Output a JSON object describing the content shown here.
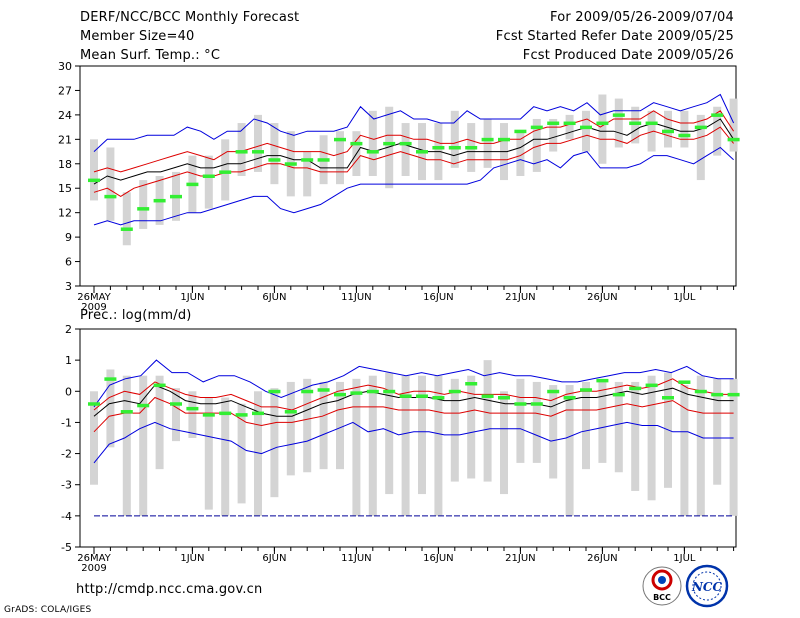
{
  "header": {
    "title": "DERF/NCC/BCC Monthly Forecast",
    "member": "Member Size=40",
    "variable": "Mean Surf. Temp.: °C",
    "period": "For 2009/05/26-2009/07/04",
    "refer": "Fcst Started Refer Date 2009/05/25",
    "produced": "Fcst Produced Date 2009/05/26"
  },
  "precip_label": "Prec.: log(mm/d)",
  "footer": {
    "url": "http://cmdp.ncc.cma.gov.cn",
    "credit": "GrADS: COLA/IGES"
  },
  "logos": {
    "bcc": "BCC",
    "ncc": "NCC"
  },
  "colors": {
    "max_min": "#0000dd",
    "spread": "#dd0000",
    "mean": "#000000",
    "box": "#d4d4d4",
    "obs": "#33ee33",
    "floor": "#000099"
  },
  "chart_data": [
    {
      "type": "box",
      "title": "Mean Surf. Temp.: °C",
      "ylim": [
        3,
        30
      ],
      "yticks": [
        3,
        6,
        9,
        12,
        15,
        18,
        21,
        24,
        27,
        30
      ],
      "xticks": [
        {
          "day": 0,
          "label": "26MAY",
          "sub": "2009"
        },
        {
          "day": 6,
          "label": "1JUN"
        },
        {
          "day": 11,
          "label": "6JUN"
        },
        {
          "day": 16,
          "label": "11JUN"
        },
        {
          "day": 21,
          "label": "16JUN"
        },
        {
          "day": 26,
          "label": "21JUN"
        },
        {
          "day": 31,
          "label": "26JUN"
        },
        {
          "day": 36,
          "label": "1JUL"
        }
      ],
      "days": 40,
      "series": [
        {
          "name": "max",
          "values": [
            19.5,
            21,
            21,
            21,
            21.5,
            21.5,
            21.5,
            22.5,
            22,
            21,
            22,
            22,
            23.5,
            23,
            22,
            21.5,
            22,
            22,
            22,
            22.5,
            25,
            23.5,
            24,
            24.5,
            23.5,
            23.5,
            23,
            23,
            24.5,
            23.5,
            23.5,
            23.5,
            23.5,
            25,
            24.5,
            25,
            24.5,
            25.5,
            24,
            24.5,
            24.5,
            24.5,
            25.5,
            25,
            24.5,
            25,
            25.5,
            26.5,
            23
          ]
        },
        {
          "name": "upper",
          "values": [
            17,
            17.5,
            17,
            17.5,
            18,
            18.5,
            19,
            19.5,
            19,
            18.5,
            19.5,
            19.5,
            20,
            20.5,
            20,
            19.5,
            19.5,
            19.5,
            19,
            19.5,
            21.5,
            21,
            21.5,
            21.5,
            21,
            21,
            20.5,
            20.5,
            21,
            20.5,
            20.5,
            21,
            21,
            22,
            22.5,
            22.5,
            23,
            23.5,
            22.5,
            23.5,
            23.5,
            23.5,
            24.5,
            23.5,
            23,
            23,
            23.5,
            24.5,
            22
          ]
        },
        {
          "name": "mean",
          "values": [
            15.5,
            16.5,
            16,
            16.5,
            17,
            17,
            17.5,
            18,
            17.5,
            17.5,
            18,
            18,
            18.5,
            19,
            19,
            18.5,
            18.5,
            17.5,
            17.5,
            17.5,
            20,
            19.5,
            20,
            20.5,
            20,
            19.5,
            19.5,
            19,
            19.5,
            19.5,
            19.5,
            19.5,
            20,
            21,
            21,
            21.5,
            22,
            22.5,
            22,
            22,
            21.5,
            22.5,
            23,
            22.5,
            22,
            22,
            22.5,
            23.5,
            21
          ]
        },
        {
          "name": "lower",
          "values": [
            14.5,
            15,
            14,
            15,
            15.5,
            16,
            16.5,
            17,
            16.5,
            16.5,
            17,
            17,
            17.5,
            18,
            18,
            17.5,
            17.5,
            17,
            17,
            17,
            19,
            18.5,
            19,
            19.5,
            19,
            18.5,
            18.5,
            18,
            18.5,
            18.5,
            18.5,
            18.5,
            19,
            20,
            20.5,
            20.5,
            21,
            21.5,
            21,
            21,
            20.5,
            21.5,
            22,
            21.5,
            21,
            21,
            21.5,
            22.5,
            20.5
          ]
        },
        {
          "name": "min",
          "values": [
            10.5,
            11,
            10.5,
            11,
            11,
            11,
            11.5,
            12,
            12,
            12.5,
            13,
            13.5,
            14,
            14,
            12.5,
            12,
            12.5,
            13,
            14,
            15,
            15.5,
            15.5,
            15.5,
            15.5,
            15.5,
            15.5,
            15.5,
            15.5,
            15.5,
            16,
            17.5,
            18,
            18.5,
            18,
            18.5,
            17.5,
            19,
            19.5,
            17.5,
            17.5,
            17.5,
            18,
            19,
            19,
            18.5,
            18,
            19,
            20,
            18.5
          ]
        }
      ],
      "boxes": {
        "lows": [
          13.5,
          11,
          8,
          10,
          10.5,
          11,
          12,
          12.5,
          13.5,
          16.5,
          17,
          15.5,
          14,
          14,
          15.5,
          15.5,
          16.5,
          16.5,
          15,
          16.5,
          16,
          16,
          17.5,
          17,
          17.5,
          16,
          16.5,
          17,
          19.5,
          21,
          19.5,
          18,
          20,
          20.5,
          19.5,
          20,
          20,
          16,
          19,
          19.5
        ],
        "highs": [
          21,
          20,
          14.5,
          16,
          16.5,
          17,
          19,
          19,
          21,
          23,
          24,
          23,
          22,
          19.5,
          21.5,
          22,
          22,
          24.5,
          25,
          23,
          23,
          23,
          24.5,
          23,
          23.5,
          23,
          22,
          23.5,
          23.5,
          24,
          24.5,
          26.5,
          26,
          25,
          24.5,
          24.5,
          24.5,
          24,
          25,
          26
        ]
      },
      "observed": [
        16,
        14,
        10,
        12.5,
        13.5,
        14,
        15.5,
        16.5,
        17,
        19.5,
        19.5,
        18.5,
        18,
        18.5,
        18.5,
        21,
        20.5,
        19.5,
        20.5,
        20.5,
        19.5,
        20,
        20,
        20,
        21,
        21,
        22,
        22.5,
        23,
        23,
        22.5,
        23,
        24,
        23,
        23,
        22,
        21.5,
        22.5,
        24,
        21
      ]
    },
    {
      "type": "box",
      "title": "Prec.: log(mm/d)",
      "ylim": [
        -5,
        2
      ],
      "yticks": [
        -5,
        -4,
        -3,
        -2,
        -1,
        0,
        1,
        2
      ],
      "xticks": [
        {
          "day": 0,
          "label": "26MAY",
          "sub": "2009"
        },
        {
          "day": 6,
          "label": "1JUN"
        },
        {
          "day": 11,
          "label": "6JUN"
        },
        {
          "day": 16,
          "label": "11JUN"
        },
        {
          "day": 21,
          "label": "16JUN"
        },
        {
          "day": 26,
          "label": "21JUN"
        },
        {
          "day": 31,
          "label": "26JUN"
        },
        {
          "day": 36,
          "label": "1JUL"
        }
      ],
      "days": 40,
      "floor": -4,
      "series": [
        {
          "name": "max",
          "values": [
            -0.5,
            0.2,
            0.4,
            0.5,
            1,
            0.6,
            0.6,
            0.3,
            0.5,
            0.5,
            0.3,
            0,
            -0.2,
            0,
            0.2,
            0.3,
            0.5,
            0.8,
            0.7,
            0.6,
            0.5,
            0.6,
            0.5,
            0.6,
            0.7,
            0.5,
            0.6,
            0.5,
            0.5,
            0.4,
            0.3,
            0.3,
            0.4,
            0.5,
            0.6,
            0.6,
            0.7,
            0.6,
            0.8,
            0.5,
            0.4,
            0.4
          ]
        },
        {
          "name": "upper",
          "values": [
            -0.6,
            -0.2,
            0,
            -0.1,
            0.3,
            0.1,
            -0.1,
            -0.2,
            -0.2,
            -0.1,
            -0.3,
            -0.5,
            -0.5,
            -0.6,
            -0.4,
            -0.2,
            0,
            0.1,
            0.2,
            0.1,
            -0.1,
            0,
            0,
            -0.1,
            0,
            -0.1,
            -0.1,
            -0.1,
            -0.2,
            -0.2,
            -0.3,
            -0.1,
            0,
            0,
            0.1,
            0.2,
            0.1,
            0.2,
            0.4,
            0.1,
            0,
            -0.1,
            -0.1
          ]
        },
        {
          "name": "mean",
          "values": [
            -0.8,
            -0.4,
            -0.3,
            -0.4,
            0.2,
            0,
            -0.3,
            -0.4,
            -0.4,
            -0.3,
            -0.5,
            -0.7,
            -0.8,
            -0.8,
            -0.6,
            -0.4,
            -0.3,
            -0.1,
            0,
            -0.1,
            -0.2,
            -0.2,
            -0.2,
            -0.3,
            -0.3,
            -0.2,
            -0.3,
            -0.4,
            -0.4,
            -0.4,
            -0.5,
            -0.3,
            -0.2,
            -0.2,
            -0.1,
            0,
            -0.1,
            0,
            0.1,
            -0.1,
            -0.2,
            -0.3,
            -0.3
          ]
        },
        {
          "name": "lower",
          "values": [
            -1.3,
            -0.8,
            -0.7,
            -0.7,
            -0.2,
            -0.4,
            -0.7,
            -0.7,
            -0.7,
            -0.7,
            -1,
            -1.1,
            -1,
            -1,
            -0.9,
            -0.8,
            -0.6,
            -0.5,
            -0.5,
            -0.5,
            -0.6,
            -0.6,
            -0.6,
            -0.7,
            -0.7,
            -0.6,
            -0.7,
            -0.7,
            -0.7,
            -0.7,
            -0.8,
            -0.6,
            -0.6,
            -0.6,
            -0.5,
            -0.4,
            -0.5,
            -0.4,
            -0.3,
            -0.6,
            -0.7,
            -0.7,
            -0.7
          ]
        },
        {
          "name": "min",
          "values": [
            -2.3,
            -1.7,
            -1.5,
            -1.2,
            -1,
            -1.2,
            -1.3,
            -1.4,
            -1.5,
            -1.6,
            -1.9,
            -2,
            -1.8,
            -1.7,
            -1.6,
            -1.4,
            -1.2,
            -1,
            -1.3,
            -1.2,
            -1.4,
            -1.3,
            -1.3,
            -1.4,
            -1.4,
            -1.3,
            -1.2,
            -1.2,
            -1.2,
            -1.4,
            -1.6,
            -1.5,
            -1.3,
            -1.2,
            -1.1,
            -1,
            -1.1,
            -1.1,
            -1.3,
            -1.3,
            -1.5,
            -1.5,
            -1.5
          ]
        }
      ],
      "boxes": {
        "lows": [
          -3,
          -1.8,
          -4,
          -4,
          -2.5,
          -1.6,
          -1.5,
          -3.8,
          -4,
          -3.6,
          -4,
          -3.4,
          -2.7,
          -2.6,
          -2.5,
          -2.5,
          -4,
          -4,
          -3.3,
          -4,
          -3.3,
          -4,
          -2.9,
          -2.8,
          -2.9,
          -3.3,
          -2.3,
          -2.3,
          -2.8,
          -4,
          -2.5,
          -2.3,
          -2.6,
          -3.2,
          -3.5,
          -3.1,
          -4,
          -4,
          -3,
          -4
        ],
        "highs": [
          0,
          0.7,
          0.5,
          0.5,
          0.5,
          0.1,
          0,
          -0.2,
          -0.2,
          -0.4,
          0,
          0.1,
          0.3,
          0.4,
          0.3,
          0.3,
          0.4,
          0.5,
          0.6,
          0.5,
          0.5,
          0.5,
          0.4,
          0.5,
          1,
          0,
          0.4,
          0.3,
          0.2,
          0.2,
          0.3,
          0.3,
          0.3,
          0.3,
          0.5,
          0.6,
          0.2,
          0.5,
          0.4,
          0.4
        ]
      },
      "observed": [
        -0.4,
        0.4,
        -0.65,
        -0.45,
        0.2,
        -0.4,
        -0.55,
        -0.75,
        -0.7,
        -0.75,
        -0.7,
        0,
        -0.65,
        0,
        0.05,
        -0.1,
        -0.05,
        0,
        0,
        -0.15,
        -0.15,
        -0.2,
        0,
        0.25,
        -0.15,
        -0.2,
        -0.4,
        -0.4,
        0,
        -0.2,
        0.05,
        0.35,
        -0.1,
        0.1,
        0.2,
        -0.2,
        0.3,
        0,
        -0.1,
        -0.1
      ]
    }
  ]
}
